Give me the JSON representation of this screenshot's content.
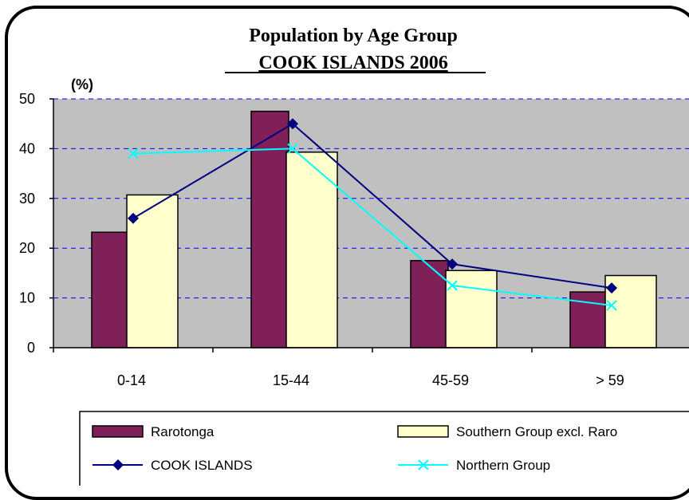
{
  "chart_data": {
    "type": "bar",
    "title": "Population by Age Group",
    "subtitle": "COOK ISLANDS 2006",
    "ylabel": "(%)",
    "xlabel": "",
    "categories": [
      "0-14",
      "15-44",
      "45-59",
      "> 59"
    ],
    "ylim": [
      0,
      50
    ],
    "yticks": [
      0,
      10,
      20,
      30,
      40,
      50
    ],
    "grid": true,
    "legend_position": "bottom",
    "series": [
      {
        "name": "Rarotonga",
        "kind": "bar",
        "color": "#7f2158",
        "values": [
          23.2,
          47.5,
          17.5,
          11.2
        ]
      },
      {
        "name": "Southern Group excl. Raro",
        "kind": "bar",
        "color": "#ffffcc",
        "values": [
          30.7,
          39.3,
          15.5,
          14.5
        ]
      },
      {
        "name": "COOK ISLANDS",
        "kind": "line",
        "marker": "diamond",
        "color": "#000080",
        "values": [
          26.0,
          45.0,
          16.8,
          12.0
        ]
      },
      {
        "name": "Northern Group",
        "kind": "line",
        "marker": "x",
        "color": "#00ffff",
        "values": [
          39.0,
          40.0,
          12.5,
          8.5
        ]
      }
    ],
    "plot_background": "#c0c0c0",
    "gridline_color": "#0000ff"
  }
}
